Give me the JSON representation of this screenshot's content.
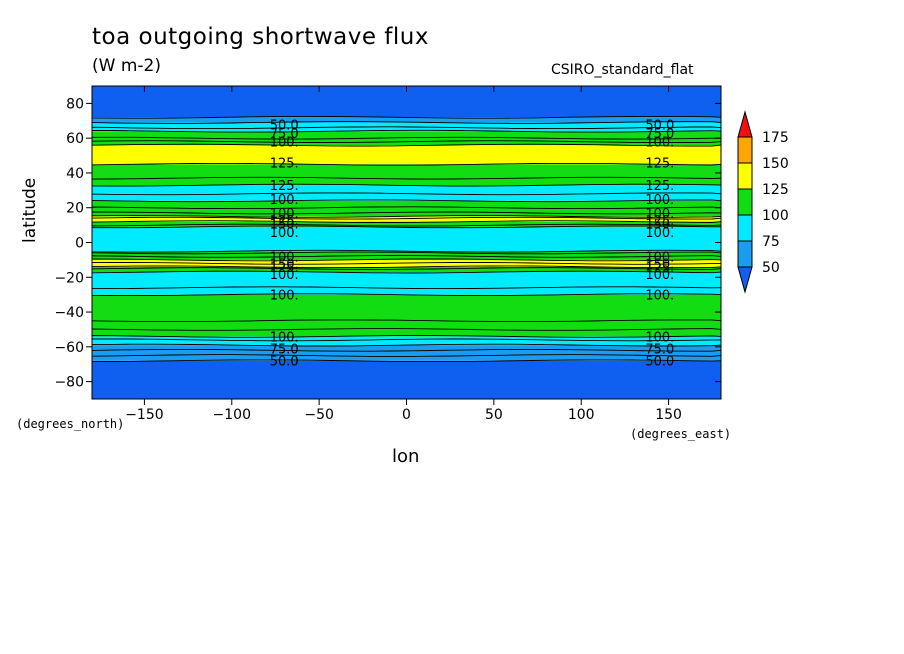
{
  "header": {
    "title": "toa outgoing shortwave flux",
    "units": "(W m-2)",
    "model": "CSIRO_standard_flat"
  },
  "chart_data": {
    "type": "heatmap",
    "xlabel": "lon",
    "ylabel": "latitude",
    "x_units": "(degrees_east)",
    "y_units": "(degrees_north)",
    "xlim": [
      -180,
      180
    ],
    "ylim": [
      -90,
      90
    ],
    "x_ticks": [
      -150,
      -100,
      -50,
      0,
      50,
      100,
      150
    ],
    "y_ticks": [
      -80,
      -60,
      -40,
      -20,
      0,
      20,
      40,
      60,
      80
    ],
    "levels": [
      50,
      75,
      100,
      125,
      150,
      175
    ],
    "colorbar_labels": [
      "50",
      "75",
      "100",
      "125",
      "150",
      "175"
    ],
    "level_colors": {
      "below_50": "#0f5ff0",
      "50_75": "#1a9cf0",
      "75_100": "#00ebff",
      "100_125": "#12dc12",
      "125_150": "#ffff00",
      "150_175": "#ffa500",
      "above_175": "#f01010"
    },
    "latitude_bands": [
      {
        "lat_from": -90,
        "lat_to": -68,
        "class": "below_50"
      },
      {
        "lat_from": -68,
        "lat_to": -59,
        "class": "50_75"
      },
      {
        "lat_from": -59,
        "lat_to": -54,
        "class": "75_100"
      },
      {
        "lat_from": -54,
        "lat_to": -30,
        "class": "100_125"
      },
      {
        "lat_from": -30,
        "lat_to": -17,
        "class": "75_100"
      },
      {
        "lat_from": -17,
        "lat_to": -14,
        "class": "100_125"
      },
      {
        "lat_from": -14,
        "lat_to": -10,
        "class": "125_150"
      },
      {
        "lat_from": -10,
        "lat_to": -5,
        "class": "100_125"
      },
      {
        "lat_from": -5,
        "lat_to": 9,
        "class": "75_100"
      },
      {
        "lat_from": 9,
        "lat_to": 12,
        "class": "100_125"
      },
      {
        "lat_from": 12,
        "lat_to": 15,
        "class": "125_150"
      },
      {
        "lat_from": 15,
        "lat_to": 24,
        "class": "100_125"
      },
      {
        "lat_from": 24,
        "lat_to": 33,
        "class": "75_100"
      },
      {
        "lat_from": 33,
        "lat_to": 45,
        "class": "100_125"
      },
      {
        "lat_from": 45,
        "lat_to": 56,
        "class": "125_150"
      },
      {
        "lat_from": 56,
        "lat_to": 64,
        "class": "100_125"
      },
      {
        "lat_from": 64,
        "lat_to": 69,
        "class": "75_100"
      },
      {
        "lat_from": 69,
        "lat_to": 72,
        "class": "50_75"
      },
      {
        "lat_from": 72,
        "lat_to": 90,
        "class": "below_50"
      }
    ],
    "contour_lats": [
      -68,
      -65,
      -62,
      -59,
      -56,
      -54,
      -50,
      -45,
      -30,
      -26,
      -17,
      -15,
      -14,
      -12,
      -10,
      -8,
      -6,
      -5,
      9,
      10,
      12,
      14,
      15,
      17,
      20,
      24,
      28,
      33,
      37,
      45,
      56,
      58,
      60,
      64,
      66,
      69,
      72
    ],
    "contour_labels": [
      {
        "text": "50.0",
        "lat": 68
      },
      {
        "text": "75.0",
        "lat": 63
      },
      {
        "text": "100.",
        "lat": 58
      },
      {
        "text": "125.",
        "lat": 46
      },
      {
        "text": "125.",
        "lat": 33
      },
      {
        "text": "100.",
        "lat": 25
      },
      {
        "text": "100.",
        "lat": 17
      },
      {
        "text": "125.",
        "lat": 13
      },
      {
        "text": "150.",
        "lat": 11
      },
      {
        "text": "100.",
        "lat": 6
      },
      {
        "text": "100.",
        "lat": -8
      },
      {
        "text": "150.",
        "lat": -12
      },
      {
        "text": "125.",
        "lat": -14
      },
      {
        "text": "100.",
        "lat": -18
      },
      {
        "text": "100.",
        "lat": -30
      },
      {
        "text": "100.",
        "lat": -54
      },
      {
        "text": "75.0",
        "lat": -61
      },
      {
        "text": "50.0",
        "lat": -68
      }
    ],
    "contour_label_lons": [
      -70,
      145
    ]
  }
}
